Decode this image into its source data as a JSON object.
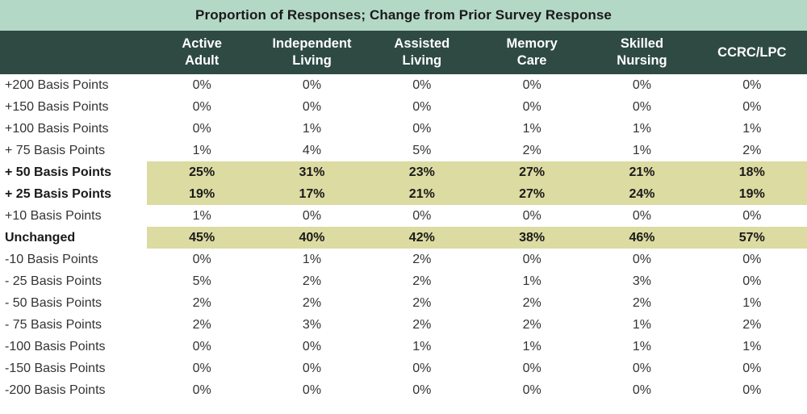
{
  "chart_data": {
    "type": "table",
    "title": "Proportion of Responses; Change from Prior Survey Response",
    "columns": [
      {
        "l1": "Active",
        "l2": "Adult"
      },
      {
        "l1": "Independent",
        "l2": "Living"
      },
      {
        "l1": "Assisted",
        "l2": "Living"
      },
      {
        "l1": "Memory",
        "l2": "Care"
      },
      {
        "l1": "Skilled",
        "l2": "Nursing"
      },
      {
        "l1": "CCRC/LPC",
        "l2": ""
      }
    ],
    "rows": [
      {
        "label": "+200 Basis Points",
        "highlight": false,
        "values": [
          "0%",
          "0%",
          "0%",
          "0%",
          "0%",
          "0%"
        ]
      },
      {
        "label": "+150 Basis Points",
        "highlight": false,
        "values": [
          "0%",
          "0%",
          "0%",
          "0%",
          "0%",
          "0%"
        ]
      },
      {
        "label": "+100 Basis Points",
        "highlight": false,
        "values": [
          "0%",
          "1%",
          "0%",
          "1%",
          "1%",
          "1%"
        ]
      },
      {
        "label": "+ 75 Basis Points",
        "highlight": false,
        "values": [
          "1%",
          "4%",
          "5%",
          "2%",
          "1%",
          "2%"
        ]
      },
      {
        "label": "+ 50 Basis Points",
        "highlight": true,
        "values": [
          "25%",
          "31%",
          "23%",
          "27%",
          "21%",
          "18%"
        ]
      },
      {
        "label": "+ 25 Basis Points",
        "highlight": true,
        "values": [
          "19%",
          "17%",
          "21%",
          "27%",
          "24%",
          "19%"
        ]
      },
      {
        "label": "+10 Basis Points",
        "highlight": false,
        "values": [
          "1%",
          "0%",
          "0%",
          "0%",
          "0%",
          "0%"
        ]
      },
      {
        "label": "Unchanged",
        "highlight": true,
        "values": [
          "45%",
          "40%",
          "42%",
          "38%",
          "46%",
          "57%"
        ]
      },
      {
        "label": "-10 Basis Points",
        "highlight": false,
        "values": [
          "0%",
          "1%",
          "2%",
          "0%",
          "0%",
          "0%"
        ]
      },
      {
        "label": "- 25 Basis Points",
        "highlight": false,
        "values": [
          "5%",
          "2%",
          "2%",
          "1%",
          "3%",
          "0%"
        ]
      },
      {
        "label": "- 50 Basis Points",
        "highlight": false,
        "values": [
          "2%",
          "2%",
          "2%",
          "2%",
          "2%",
          "1%"
        ]
      },
      {
        "label": "- 75 Basis Points",
        "highlight": false,
        "values": [
          "2%",
          "3%",
          "2%",
          "2%",
          "1%",
          "2%"
        ]
      },
      {
        "label": "-100 Basis Points",
        "highlight": false,
        "values": [
          "0%",
          "0%",
          "1%",
          "1%",
          "1%",
          "1%"
        ]
      },
      {
        "label": "-150 Basis Points",
        "highlight": false,
        "values": [
          "0%",
          "0%",
          "0%",
          "0%",
          "0%",
          "0%"
        ]
      },
      {
        "label": "-200 Basis Points",
        "highlight": false,
        "values": [
          "0%",
          "0%",
          "0%",
          "0%",
          "0%",
          "0%"
        ]
      }
    ]
  },
  "colors": {
    "title_bg": "#b4d8c6",
    "header_bg": "#2e4a43",
    "highlight_bg": "#dcdba2"
  }
}
